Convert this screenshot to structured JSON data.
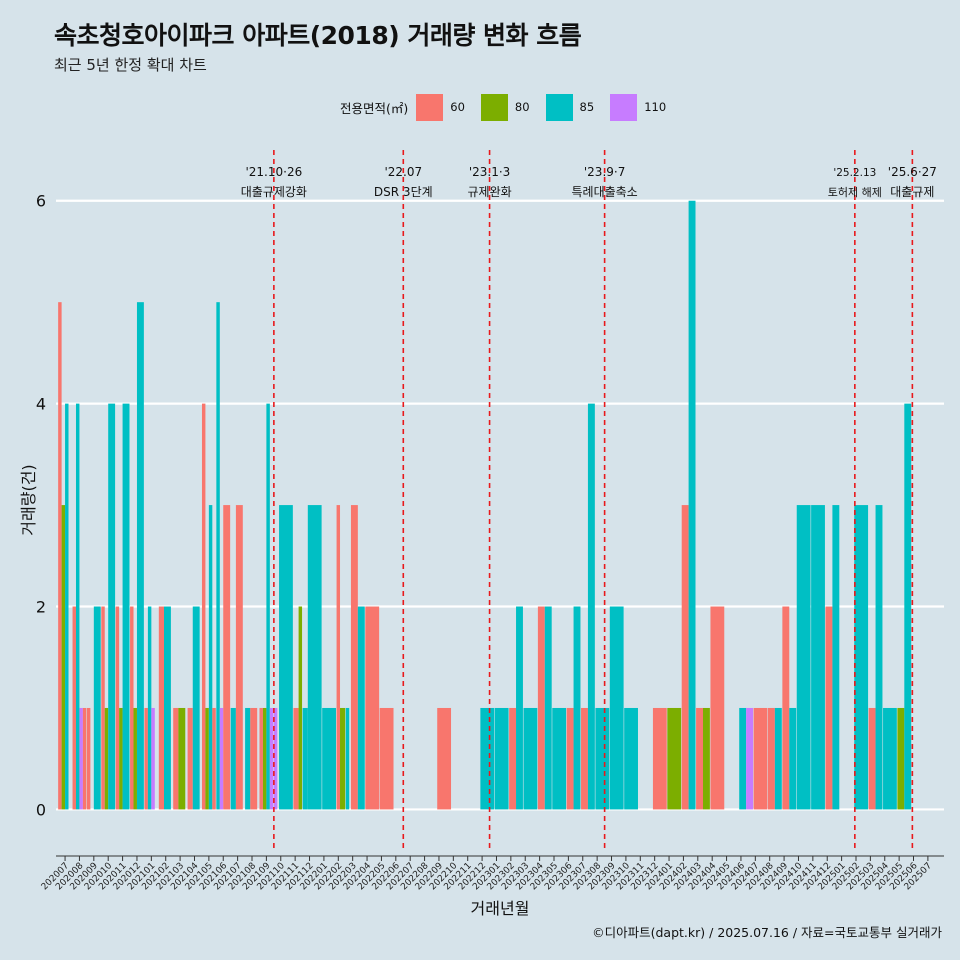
{
  "header": {
    "title": "속초청호아이파크 아파트(2018) 거래량 변화 흐름",
    "subtitle": "최근 5년 한정 확대 차트"
  },
  "legend": {
    "title": "전용면적(㎡)",
    "items": [
      {
        "label": "60",
        "color": "#f8766d"
      },
      {
        "label": "80",
        "color": "#7cae00"
      },
      {
        "label": "85",
        "color": "#00bfc4"
      },
      {
        "label": "110",
        "color": "#c77cff"
      }
    ]
  },
  "caption": "©디아파트(dapt.kr) / 2025.07.16 / 자료=국토교통부 실거래가",
  "chart_data": {
    "type": "bar",
    "title": "속초청호아이파크 아파트(2018) 거래량 변화 흐름",
    "xlabel": "거래년월",
    "ylabel": "거래량(건)",
    "ylim": [
      -0.4,
      6.5
    ],
    "yticks": [
      0,
      2,
      4,
      6
    ],
    "xlim": [
      -0.15,
      61.6
    ],
    "categories": [
      "202007",
      "202008",
      "202009",
      "202010",
      "202011",
      "202012",
      "202101",
      "202102",
      "202103",
      "202104",
      "202105",
      "202106",
      "202107",
      "202108",
      "202109",
      "202110",
      "202111",
      "202112",
      "202201",
      "202202",
      "202203",
      "202204",
      "202205",
      "202206",
      "202207",
      "202208",
      "202209",
      "202210",
      "202211",
      "202212",
      "202301",
      "202302",
      "202303",
      "202304",
      "202305",
      "202306",
      "202307",
      "202308",
      "202309",
      "202310",
      "202311",
      "202312",
      "202401",
      "202402",
      "202403",
      "202404",
      "202405",
      "202406",
      "202407",
      "202408",
      "202409",
      "202410",
      "202411",
      "202412",
      "202501",
      "202502",
      "202503",
      "202504",
      "202505",
      "202506",
      "202507"
    ],
    "series_names": [
      "60",
      "80",
      "85",
      "110"
    ],
    "bars": [
      {
        "x": 0.0,
        "w": 0.24,
        "v": 5,
        "s": "60"
      },
      {
        "x": 0.24,
        "w": 0.24,
        "v": 3,
        "s": "80"
      },
      {
        "x": 0.48,
        "w": 0.24,
        "v": 4,
        "s": "85"
      },
      {
        "x": 0.72,
        "w": 0.24,
        "v": 0,
        "s": "110"
      },
      {
        "x": 1.0,
        "w": 0.24,
        "v": 2,
        "s": "60"
      },
      {
        "x": 1.24,
        "w": 0.24,
        "v": 4,
        "s": "85"
      },
      {
        "x": 1.48,
        "w": 0.24,
        "v": 1,
        "s": "110"
      },
      {
        "x": 1.72,
        "w": 0.24,
        "v": 1,
        "s": "60"
      },
      {
        "x": 2.0,
        "w": 0.24,
        "v": 1,
        "s": "60"
      },
      {
        "x": 2.48,
        "w": 0.48,
        "v": 2,
        "s": "85"
      },
      {
        "x": 3.0,
        "w": 0.24,
        "v": 2,
        "s": "60"
      },
      {
        "x": 3.24,
        "w": 0.24,
        "v": 1,
        "s": "80"
      },
      {
        "x": 3.48,
        "w": 0.48,
        "v": 4,
        "s": "85"
      },
      {
        "x": 4.0,
        "w": 0.24,
        "v": 2,
        "s": "60"
      },
      {
        "x": 4.24,
        "w": 0.24,
        "v": 1,
        "s": "80"
      },
      {
        "x": 4.48,
        "w": 0.48,
        "v": 4,
        "s": "85"
      },
      {
        "x": 5.0,
        "w": 0.24,
        "v": 2,
        "s": "60"
      },
      {
        "x": 5.24,
        "w": 0.24,
        "v": 1,
        "s": "80"
      },
      {
        "x": 5.48,
        "w": 0.48,
        "v": 5,
        "s": "85"
      },
      {
        "x": 6.0,
        "w": 0.24,
        "v": 1,
        "s": "60"
      },
      {
        "x": 6.24,
        "w": 0.24,
        "v": 2,
        "s": "85"
      },
      {
        "x": 6.48,
        "w": 0.24,
        "v": 1,
        "s": "110"
      },
      {
        "x": 7.0,
        "w": 0.36,
        "v": 2,
        "s": "60"
      },
      {
        "x": 7.36,
        "w": 0.48,
        "v": 2,
        "s": "85"
      },
      {
        "x": 8.0,
        "w": 0.36,
        "v": 1,
        "s": "60"
      },
      {
        "x": 8.36,
        "w": 0.48,
        "v": 1,
        "s": "80"
      },
      {
        "x": 9.0,
        "w": 0.36,
        "v": 1,
        "s": "60"
      },
      {
        "x": 9.36,
        "w": 0.48,
        "v": 2,
        "s": "85"
      },
      {
        "x": 10.0,
        "w": 0.24,
        "v": 4,
        "s": "60"
      },
      {
        "x": 10.24,
        "w": 0.24,
        "v": 1,
        "s": "80"
      },
      {
        "x": 10.48,
        "w": 0.24,
        "v": 3,
        "s": "85"
      },
      {
        "x": 10.72,
        "w": 0.24,
        "v": 1,
        "s": "60"
      },
      {
        "x": 11.0,
        "w": 0.24,
        "v": 5,
        "s": "85"
      },
      {
        "x": 11.24,
        "w": 0.24,
        "v": 1,
        "s": "110"
      },
      {
        "x": 11.48,
        "w": 0.48,
        "v": 3,
        "s": "60"
      },
      {
        "x": 12.0,
        "w": 0.36,
        "v": 1,
        "s": "85"
      },
      {
        "x": 12.36,
        "w": 0.48,
        "v": 3,
        "s": "60"
      },
      {
        "x": 13.0,
        "w": 0.36,
        "v": 1,
        "s": "85"
      },
      {
        "x": 13.36,
        "w": 0.48,
        "v": 1,
        "s": "60"
      },
      {
        "x": 14.0,
        "w": 0.24,
        "v": 1,
        "s": "60"
      },
      {
        "x": 14.24,
        "w": 0.24,
        "v": 1,
        "s": "80"
      },
      {
        "x": 14.48,
        "w": 0.24,
        "v": 4,
        "s": "85"
      },
      {
        "x": 14.72,
        "w": 0.24,
        "v": 1,
        "s": "110"
      },
      {
        "x": 15.0,
        "w": 0.24,
        "v": 1,
        "s": "110"
      },
      {
        "x": 15.36,
        "w": 0.96,
        "v": 3,
        "s": "85"
      },
      {
        "x": 16.36,
        "w": 0.36,
        "v": 1,
        "s": "60"
      },
      {
        "x": 16.72,
        "w": 0.24,
        "v": 2,
        "s": "80"
      },
      {
        "x": 17.0,
        "w": 0.36,
        "v": 1,
        "s": "85"
      },
      {
        "x": 17.36,
        "w": 0.96,
        "v": 3,
        "s": "85"
      },
      {
        "x": 18.36,
        "w": 0.96,
        "v": 1,
        "s": "85"
      },
      {
        "x": 19.36,
        "w": 0.24,
        "v": 3,
        "s": "60"
      },
      {
        "x": 19.6,
        "w": 0.36,
        "v": 1,
        "s": "80"
      },
      {
        "x": 20.0,
        "w": 0.24,
        "v": 1,
        "s": "85"
      },
      {
        "x": 20.36,
        "w": 0.48,
        "v": 3,
        "s": "60"
      },
      {
        "x": 20.84,
        "w": 0.48,
        "v": 2,
        "s": "85"
      },
      {
        "x": 21.36,
        "w": 0.96,
        "v": 2,
        "s": "60"
      },
      {
        "x": 22.36,
        "w": 0.96,
        "v": 1,
        "s": "60"
      },
      {
        "x": 26.36,
        "w": 0.96,
        "v": 1,
        "s": "60"
      },
      {
        "x": 29.36,
        "w": 0.96,
        "v": 1,
        "s": "85"
      },
      {
        "x": 30.36,
        "w": 0.96,
        "v": 1,
        "s": "85"
      },
      {
        "x": 31.36,
        "w": 0.48,
        "v": 1,
        "s": "60"
      },
      {
        "x": 31.84,
        "w": 0.48,
        "v": 2,
        "s": "85"
      },
      {
        "x": 32.36,
        "w": 0.96,
        "v": 1,
        "s": "85"
      },
      {
        "x": 33.36,
        "w": 0.48,
        "v": 2,
        "s": "60"
      },
      {
        "x": 33.84,
        "w": 0.48,
        "v": 2,
        "s": "85"
      },
      {
        "x": 34.36,
        "w": 0.96,
        "v": 1,
        "s": "85"
      },
      {
        "x": 35.36,
        "w": 0.48,
        "v": 1,
        "s": "60"
      },
      {
        "x": 35.84,
        "w": 0.48,
        "v": 2,
        "s": "85"
      },
      {
        "x": 36.36,
        "w": 0.48,
        "v": 1,
        "s": "60"
      },
      {
        "x": 36.84,
        "w": 0.48,
        "v": 4,
        "s": "85"
      },
      {
        "x": 37.36,
        "w": 0.96,
        "v": 1,
        "s": "85"
      },
      {
        "x": 38.36,
        "w": 0.96,
        "v": 2,
        "s": "85"
      },
      {
        "x": 39.36,
        "w": 0.96,
        "v": 1,
        "s": "85"
      },
      {
        "x": 41.36,
        "w": 0.96,
        "v": 1,
        "s": "60"
      },
      {
        "x": 42.36,
        "w": 0.96,
        "v": 1,
        "s": "80"
      },
      {
        "x": 43.36,
        "w": 0.48,
        "v": 3,
        "s": "60"
      },
      {
        "x": 43.84,
        "w": 0.48,
        "v": 6,
        "s": "85"
      },
      {
        "x": 44.36,
        "w": 0.48,
        "v": 1,
        "s": "60"
      },
      {
        "x": 44.84,
        "w": 0.48,
        "v": 1,
        "s": "80"
      },
      {
        "x": 45.36,
        "w": 0.96,
        "v": 2,
        "s": "60"
      },
      {
        "x": 47.36,
        "w": 0.48,
        "v": 1,
        "s": "85"
      },
      {
        "x": 47.84,
        "w": 0.48,
        "v": 1,
        "s": "110"
      },
      {
        "x": 48.36,
        "w": 0.96,
        "v": 1,
        "s": "60"
      },
      {
        "x": 49.36,
        "w": 0.48,
        "v": 1,
        "s": "60"
      },
      {
        "x": 49.84,
        "w": 0.48,
        "v": 1,
        "s": "85"
      },
      {
        "x": 50.36,
        "w": 0.48,
        "v": 2,
        "s": "60"
      },
      {
        "x": 50.84,
        "w": 0.48,
        "v": 1,
        "s": "85"
      },
      {
        "x": 51.36,
        "w": 0.96,
        "v": 3,
        "s": "85"
      },
      {
        "x": 52.36,
        "w": 0.96,
        "v": 3,
        "s": "85"
      },
      {
        "x": 53.36,
        "w": 0.48,
        "v": 2,
        "s": "60"
      },
      {
        "x": 53.84,
        "w": 0.48,
        "v": 3,
        "s": "85"
      },
      {
        "x": 55.36,
        "w": 0.96,
        "v": 3,
        "s": "85"
      },
      {
        "x": 56.36,
        "w": 0.48,
        "v": 1,
        "s": "60"
      },
      {
        "x": 56.84,
        "w": 0.48,
        "v": 3,
        "s": "85"
      },
      {
        "x": 57.36,
        "w": 0.96,
        "v": 1,
        "s": "85"
      },
      {
        "x": 58.36,
        "w": 0.48,
        "v": 1,
        "s": "80"
      },
      {
        "x": 58.84,
        "w": 0.48,
        "v": 4,
        "s": "85"
      }
    ],
    "events": [
      {
        "x": 15.0,
        "line1": "'21.10·26",
        "line2": "대출규제강화"
      },
      {
        "x": 24.0,
        "line1": "'22.07",
        "line2": "DSR 3단계"
      },
      {
        "x": 30.0,
        "line1": "'23.1·3",
        "line2": "규제완화"
      },
      {
        "x": 38.0,
        "line1": "'23.9·7",
        "line2": "특례대출축소"
      },
      {
        "x": 55.4,
        "line1": "'25.2.13",
        "line2": "토허제 해제"
      },
      {
        "x": 59.4,
        "line1": "'25.6·27",
        "line2": "대출규제"
      }
    ]
  }
}
